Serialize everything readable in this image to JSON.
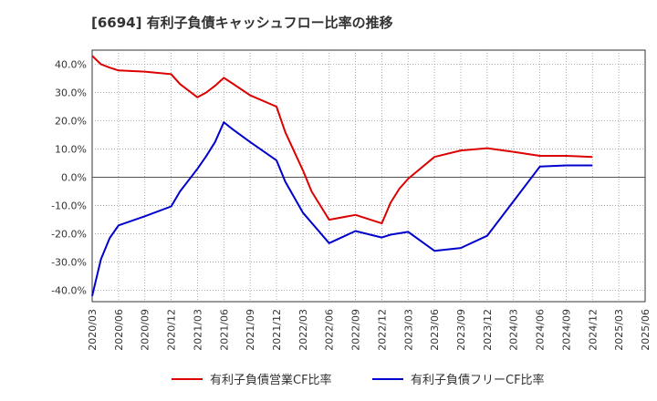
{
  "chart_data": {
    "type": "line",
    "title": "[6694]  有利子負債キャッシュフロー比率の推移",
    "xlabel": "",
    "ylabel": "",
    "x_tick_labels": [
      "2020/03",
      "2020/06",
      "2020/09",
      "2020/12",
      "2021/03",
      "2021/06",
      "2021/09",
      "2021/12",
      "2022/03",
      "2022/06",
      "2022/09",
      "2022/12",
      "2023/03",
      "2023/06",
      "2023/09",
      "2023/12",
      "2024/03",
      "2024/06",
      "2024/09",
      "2024/12",
      "2025/03",
      "2025/06"
    ],
    "y_tick_labels": [
      "40.0%",
      "30.0%",
      "20.0%",
      "10.0%",
      "0.0%",
      "-10.0%",
      "-20.0%",
      "-30.0%",
      "-40.0%"
    ],
    "y_ticks": [
      40,
      30,
      20,
      10,
      0,
      -10,
      -20,
      -30,
      -40
    ],
    "ylim": [
      -44,
      45
    ],
    "grid": true,
    "legend_position": "bottom",
    "series": [
      {
        "name": "有利子負債営業CF比率",
        "color": "#dd0000",
        "points": [
          [
            "2020/03",
            43.0
          ],
          [
            "2020/04",
            40.0
          ],
          [
            "2020/05",
            38.8
          ],
          [
            "2020/06",
            37.8
          ],
          [
            "2020/09",
            37.4
          ],
          [
            "2020/12",
            36.5
          ],
          [
            "2021/01",
            33.0
          ],
          [
            "2021/03",
            28.3
          ],
          [
            "2021/04",
            30.0
          ],
          [
            "2021/05",
            32.4
          ],
          [
            "2021/06",
            35.2
          ],
          [
            "2021/07",
            33.2
          ],
          [
            "2021/09",
            29.0
          ],
          [
            "2021/12",
            25.0
          ],
          [
            "2022/01",
            16.0
          ],
          [
            "2022/03",
            2.5
          ],
          [
            "2022/04",
            -5.0
          ],
          [
            "2022/06",
            -15.0
          ],
          [
            "2022/09",
            -13.3
          ],
          [
            "2022/12",
            -16.3
          ],
          [
            "2023/01",
            -9.0
          ],
          [
            "2023/02",
            -4.0
          ],
          [
            "2023/03",
            -0.5
          ],
          [
            "2023/06",
            7.2
          ],
          [
            "2023/09",
            9.5
          ],
          [
            "2023/12",
            10.3
          ],
          [
            "2024/03",
            9.0
          ],
          [
            "2024/06",
            7.6
          ],
          [
            "2024/09",
            7.6
          ],
          [
            "2024/12",
            7.2
          ]
        ]
      },
      {
        "name": "有利子負債フリーCF比率",
        "color": "#0000cc",
        "points": [
          [
            "2020/03",
            -42.0
          ],
          [
            "2020/04",
            -29.0
          ],
          [
            "2020/05",
            -21.5
          ],
          [
            "2020/06",
            -17.0
          ],
          [
            "2020/09",
            -13.8
          ],
          [
            "2020/12",
            -10.3
          ],
          [
            "2021/01",
            -5.0
          ],
          [
            "2021/02",
            -1.0
          ],
          [
            "2021/03",
            3.0
          ],
          [
            "2021/04",
            7.5
          ],
          [
            "2021/05",
            12.5
          ],
          [
            "2021/06",
            19.5
          ],
          [
            "2021/07",
            17.0
          ],
          [
            "2021/09",
            12.5
          ],
          [
            "2021/12",
            6.0
          ],
          [
            "2022/01",
            -1.5
          ],
          [
            "2022/03",
            -12.5
          ],
          [
            "2022/06",
            -23.3
          ],
          [
            "2022/09",
            -19.0
          ],
          [
            "2022/12",
            -21.3
          ],
          [
            "2023/01",
            -20.3
          ],
          [
            "2023/03",
            -19.3
          ],
          [
            "2023/06",
            -26.0
          ],
          [
            "2023/09",
            -25.0
          ],
          [
            "2023/12",
            -20.7
          ],
          [
            "2024/03",
            -8.5
          ],
          [
            "2024/06",
            3.8
          ],
          [
            "2024/09",
            4.2
          ],
          [
            "2024/12",
            4.2
          ]
        ]
      }
    ]
  }
}
